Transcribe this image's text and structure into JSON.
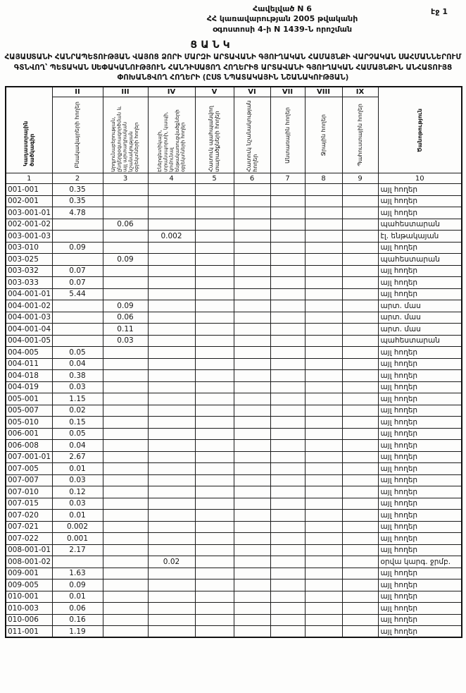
{
  "colors": {
    "ink": "#141414",
    "paper": "#fdfdfc"
  },
  "page": {
    "annex": {
      "line1": "Հավելված N 6",
      "line2": "ՀՀ կառավարության 2005 թվականի",
      "line3": "օգոստոսի 4-ի N 1439-Ն որոշման"
    },
    "page_label": "էջ 1",
    "doc_kind": "ՑԱՆԿ",
    "title": "ՀԱՅԱՍՏԱՆԻ ՀԱՆՐԱՊԵՏՈՒԹՅԱՆ  ՎԱՅՈՑ ՁՈՐԻ ՄԱՐԶԻ  ԱՐՏԱՎԱՆԻ ԳՅՈՒՂԱԿԱՆ ՀԱՄԱՅՆՔԻ ՎԱՐՉԱԿԱՆ ՍԱՀՄԱՆՆԵՐՈՒՄ  ԳՏՆՎՈՂ՝ ՊԵՏԱԿԱՆ ՍԵՓԱԿԱՆՈՒԹՅՈՒՆ  ՀԱՆԴԻՍԱՑՈՂ ՀՈՂԵՐԻՑ ԱՐՏԱՎԱՆԻ ԳՅՈՒՂԱԿԱՆ ՀԱՄԱՅՆՔԻՆ ԱՆՀԱՏՈՒՅՑ ՓՈԽԱՆՑՎՈՂ ՀՈՂԵՐԻ  (ԸՍՏ ՆՊԱՏԱԿԱՅԻՆ ՆՇԱՆԱԿՈՒԹՅԱՆ)"
  },
  "table": {
    "col1_header": "Կադաստրային ծածկագիր",
    "col10_header": "Ծանոթություն",
    "columns": [
      {
        "numeral": "II",
        "label": "Բնակավայրերի հողեր"
      },
      {
        "numeral": "III",
        "label": "Արդյունաբերության, ընդերքօգտագործման և այլ արտադրական նշանակության օբյեկտների հողեր"
      },
      {
        "numeral": "IV",
        "label": "Էներգետիկայի, տրանսպորտի, կապի, կոմունալ ենթակառուցվածքների օբյեկտների հողեր"
      },
      {
        "numeral": "V",
        "label": "Հատուկ պահպանվող տարածքների հողեր"
      },
      {
        "numeral": "VI",
        "label": "Հատուկ նշանակության հողեր"
      },
      {
        "numeral": "VII",
        "label": "Անտառային հողեր"
      },
      {
        "numeral": "VIII",
        "label": "Ջրային հողեր"
      },
      {
        "numeral": "IX",
        "label": "Պահուստային հողեր"
      }
    ],
    "number_row": [
      "1",
      "2",
      "3",
      "4",
      "5",
      "6",
      "7",
      "8",
      "9",
      "10"
    ],
    "rows": [
      {
        "code": "001-001",
        "v": [
          "0.35",
          "",
          "",
          "",
          "",
          "",
          "",
          ""
        ],
        "note": "այլ հողեր"
      },
      {
        "code": "002-001",
        "v": [
          "0.35",
          "",
          "",
          "",
          "",
          "",
          "",
          ""
        ],
        "note": "այլ հողեր"
      },
      {
        "code": "003-001-01",
        "v": [
          "4.78",
          "",
          "",
          "",
          "",
          "",
          "",
          ""
        ],
        "note": "այլ հողեր"
      },
      {
        "code": "002-001-02",
        "v": [
          "",
          "0.06",
          "",
          "",
          "",
          "",
          "",
          ""
        ],
        "note": "պահեստարան"
      },
      {
        "code": "003-001-03",
        "v": [
          "",
          "",
          "0.002",
          "",
          "",
          "",
          "",
          ""
        ],
        "note": "էլ. ենթակայան"
      },
      {
        "code": "003-010",
        "v": [
          "0.09",
          "",
          "",
          "",
          "",
          "",
          "",
          ""
        ],
        "note": "այլ հողեր"
      },
      {
        "code": "003-025",
        "v": [
          "",
          "0.09",
          "",
          "",
          "",
          "",
          "",
          ""
        ],
        "note": "պահեստարան"
      },
      {
        "code": "003-032",
        "v": [
          "0.07",
          "",
          "",
          "",
          "",
          "",
          "",
          ""
        ],
        "note": "այլ հողեր"
      },
      {
        "code": "003-033",
        "v": [
          "0.07",
          "",
          "",
          "",
          "",
          "",
          "",
          ""
        ],
        "note": "այլ հողեր"
      },
      {
        "code": "004-001-01",
        "v": [
          "5.44",
          "",
          "",
          "",
          "",
          "",
          "",
          ""
        ],
        "note": "այլ հողեր"
      },
      {
        "code": "004-001-02",
        "v": [
          "",
          "0.09",
          "",
          "",
          "",
          "",
          "",
          ""
        ],
        "note": "արտ. մաս"
      },
      {
        "code": "004-001-03",
        "v": [
          "",
          "0.06",
          "",
          "",
          "",
          "",
          "",
          ""
        ],
        "note": "արտ. մաս"
      },
      {
        "code": "004-001-04",
        "v": [
          "",
          "0.11",
          "",
          "",
          "",
          "",
          "",
          ""
        ],
        "note": "արտ. մաս"
      },
      {
        "code": "004-001-05",
        "v": [
          "",
          "0.03",
          "",
          "",
          "",
          "",
          "",
          ""
        ],
        "note": "պահեստարան"
      },
      {
        "code": "004-005",
        "v": [
          "0.05",
          "",
          "",
          "",
          "",
          "",
          "",
          ""
        ],
        "note": "այլ հողեր"
      },
      {
        "code": "004-011",
        "v": [
          "0.04",
          "",
          "",
          "",
          "",
          "",
          "",
          ""
        ],
        "note": "այլ հողեր"
      },
      {
        "code": "004-018",
        "v": [
          "0.38",
          "",
          "",
          "",
          "",
          "",
          "",
          ""
        ],
        "note": "այլ հողեր"
      },
      {
        "code": "004-019",
        "v": [
          "0.03",
          "",
          "",
          "",
          "",
          "",
          "",
          ""
        ],
        "note": "այլ հողեր"
      },
      {
        "code": "005-001",
        "v": [
          "1.15",
          "",
          "",
          "",
          "",
          "",
          "",
          ""
        ],
        "note": "այլ հողեր"
      },
      {
        "code": "005-007",
        "v": [
          "0.02",
          "",
          "",
          "",
          "",
          "",
          "",
          ""
        ],
        "note": "այլ հողեր"
      },
      {
        "code": "005-010",
        "v": [
          "0.15",
          "",
          "",
          "",
          "",
          "",
          "",
          ""
        ],
        "note": "այլ հողեր"
      },
      {
        "code": "006-001",
        "v": [
          "0.05",
          "",
          "",
          "",
          "",
          "",
          "",
          ""
        ],
        "note": "այլ հողեր"
      },
      {
        "code": "006-008",
        "v": [
          "0.04",
          "",
          "",
          "",
          "",
          "",
          "",
          ""
        ],
        "note": "այլ հողեր"
      },
      {
        "code": "007-001-01",
        "v": [
          "2.67",
          "",
          "",
          "",
          "",
          "",
          "",
          ""
        ],
        "note": "այլ հողեր"
      },
      {
        "code": "007-005",
        "v": [
          "0.01",
          "",
          "",
          "",
          "",
          "",
          "",
          ""
        ],
        "note": "այլ հողեր"
      },
      {
        "code": "007-007",
        "v": [
          "0.03",
          "",
          "",
          "",
          "",
          "",
          "",
          ""
        ],
        "note": "այլ հողեր"
      },
      {
        "code": "007-010",
        "v": [
          "0.12",
          "",
          "",
          "",
          "",
          "",
          "",
          ""
        ],
        "note": "այլ հողեր"
      },
      {
        "code": "007-015",
        "v": [
          "0.03",
          "",
          "",
          "",
          "",
          "",
          "",
          ""
        ],
        "note": "այլ հողեր"
      },
      {
        "code": "007-020",
        "v": [
          "0.01",
          "",
          "",
          "",
          "",
          "",
          "",
          ""
        ],
        "note": "այլ հողեր"
      },
      {
        "code": "007-021",
        "v": [
          "0.002",
          "",
          "",
          "",
          "",
          "",
          "",
          ""
        ],
        "note": "այլ հողեր"
      },
      {
        "code": "007-022",
        "v": [
          "0.001",
          "",
          "",
          "",
          "",
          "",
          "",
          ""
        ],
        "note": "այլ հողեր"
      },
      {
        "code": "008-001-01",
        "v": [
          "2.17",
          "",
          "",
          "",
          "",
          "",
          "",
          ""
        ],
        "note": "այլ հողեր"
      },
      {
        "code": "008-001-02",
        "v": [
          "",
          "",
          "0.02",
          "",
          "",
          "",
          "",
          ""
        ],
        "note": "օրվա կարգ. ջրմբ."
      },
      {
        "code": "009-001",
        "v": [
          "1.63",
          "",
          "",
          "",
          "",
          "",
          "",
          ""
        ],
        "note": "այլ հողեր"
      },
      {
        "code": "009-005",
        "v": [
          "0.09",
          "",
          "",
          "",
          "",
          "",
          "",
          ""
        ],
        "note": "այլ հողեր"
      },
      {
        "code": "010-001",
        "v": [
          "0.01",
          "",
          "",
          "",
          "",
          "",
          "",
          ""
        ],
        "note": "այլ հողեր"
      },
      {
        "code": "010-003",
        "v": [
          "0.06",
          "",
          "",
          "",
          "",
          "",
          "",
          ""
        ],
        "note": "այլ հողեր"
      },
      {
        "code": "010-006",
        "v": [
          "0.16",
          "",
          "",
          "",
          "",
          "",
          "",
          ""
        ],
        "note": "այլ հողեր"
      },
      {
        "code": "011-001",
        "v": [
          "1.19",
          "",
          "",
          "",
          "",
          "",
          "",
          ""
        ],
        "note": "այլ հողեր"
      }
    ]
  }
}
